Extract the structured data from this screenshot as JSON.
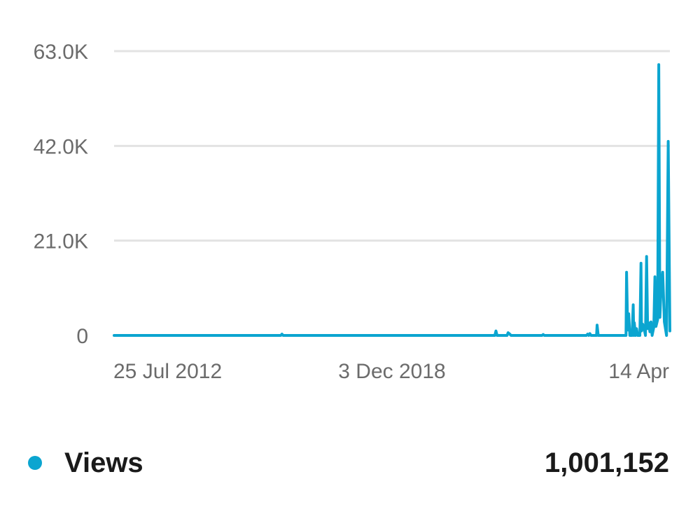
{
  "chart_data": {
    "type": "line",
    "y_ticks": [
      {
        "value": 63000,
        "label": "63.0K"
      },
      {
        "value": 42000,
        "label": "42.0K"
      },
      {
        "value": 21000,
        "label": "21.0K"
      },
      {
        "value": 0,
        "label": "0"
      }
    ],
    "x_tick_labels": [
      "25 Jul 2012",
      "3 Dec 2018",
      "14 Apr"
    ],
    "ylim": [
      0,
      63000
    ],
    "grid": true,
    "legend_placement": "bottom",
    "series": [
      {
        "name": "Views",
        "color": "#0ba5d0",
        "total": "1,001,152",
        "points": [
          [
            0.0,
            0
          ],
          [
            0.3,
            0
          ],
          [
            0.302,
            300
          ],
          [
            0.304,
            0
          ],
          [
            0.685,
            0
          ],
          [
            0.687,
            1000
          ],
          [
            0.689,
            0
          ],
          [
            0.707,
            0
          ],
          [
            0.709,
            600
          ],
          [
            0.712,
            300
          ],
          [
            0.714,
            0
          ],
          [
            0.77,
            0
          ],
          [
            0.772,
            200
          ],
          [
            0.774,
            0
          ],
          [
            0.85,
            0
          ],
          [
            0.852,
            300
          ],
          [
            0.854,
            0
          ],
          [
            0.856,
            400
          ],
          [
            0.858,
            0
          ],
          [
            0.868,
            0
          ],
          [
            0.869,
            2300
          ],
          [
            0.871,
            0
          ],
          [
            0.921,
            0
          ],
          [
            0.922,
            14000
          ],
          [
            0.924,
            1200
          ],
          [
            0.926,
            4800
          ],
          [
            0.928,
            0
          ],
          [
            0.932,
            0
          ],
          [
            0.934,
            6800
          ],
          [
            0.935,
            0
          ],
          [
            0.936,
            2800
          ],
          [
            0.938,
            0
          ],
          [
            0.94,
            1500
          ],
          [
            0.942,
            0
          ],
          [
            0.946,
            0
          ],
          [
            0.948,
            16000
          ],
          [
            0.949,
            1000
          ],
          [
            0.951,
            2500
          ],
          [
            0.953,
            1800
          ],
          [
            0.956,
            0
          ],
          [
            0.958,
            17500
          ],
          [
            0.96,
            1500
          ],
          [
            0.962,
            2800
          ],
          [
            0.964,
            800
          ],
          [
            0.966,
            3000
          ],
          [
            0.968,
            0
          ],
          [
            0.971,
            1800
          ],
          [
            0.973,
            13000
          ],
          [
            0.975,
            2000
          ],
          [
            0.978,
            3500
          ],
          [
            0.98,
            60000
          ],
          [
            0.982,
            4000
          ],
          [
            0.984,
            10000
          ],
          [
            0.987,
            14000
          ],
          [
            0.99,
            3000
          ],
          [
            0.994,
            0
          ],
          [
            0.997,
            43000
          ],
          [
            1.0,
            1000
          ]
        ]
      }
    ]
  }
}
